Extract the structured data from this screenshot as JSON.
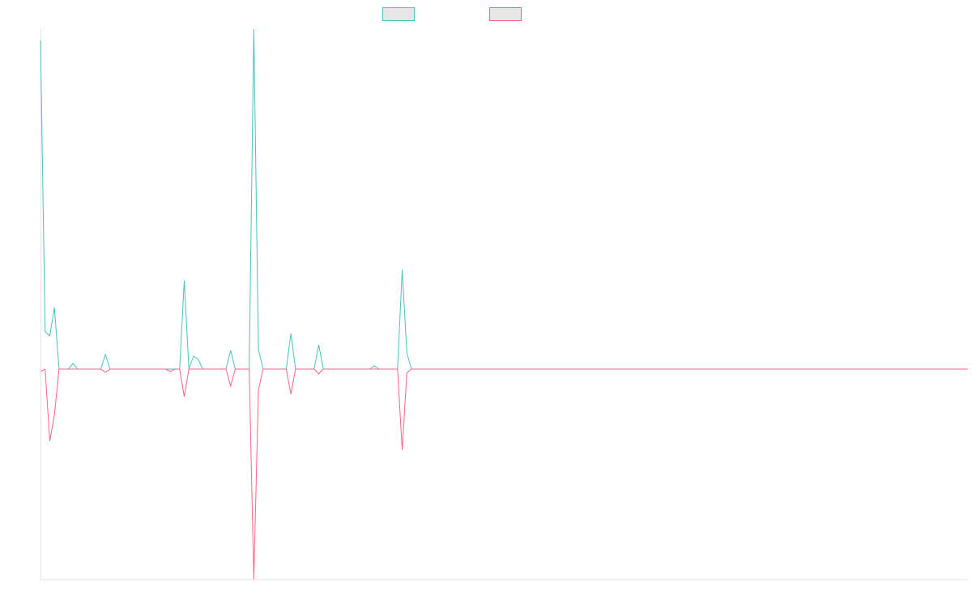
{
  "chart_data": {
    "type": "line",
    "series": [
      {
        "color": "#4bc0c0",
        "values": [
          406,
          46,
          41,
          76,
          0,
          0,
          0,
          7,
          0,
          0,
          0,
          0,
          0,
          0,
          18,
          0,
          0,
          0,
          0,
          0,
          0,
          0,
          0,
          0,
          0,
          0,
          0,
          0,
          0,
          0,
          0,
          109,
          0,
          16,
          12,
          0,
          0,
          0,
          0,
          0,
          0,
          23,
          0,
          0,
          0,
          0,
          420,
          24,
          0,
          0,
          0,
          0,
          0,
          0,
          44,
          0,
          0,
          0,
          0,
          0,
          30,
          0,
          0,
          0,
          0,
          0,
          0,
          0,
          0,
          0,
          0,
          0,
          4,
          0,
          0,
          0,
          0,
          0,
          123,
          20,
          0,
          0,
          0,
          0,
          0,
          0,
          0,
          0,
          0,
          0,
          0,
          0,
          0,
          0,
          0,
          0,
          0,
          0,
          0,
          0,
          0,
          0,
          0,
          0,
          0,
          0,
          0,
          0,
          0,
          0,
          0,
          0,
          0,
          0,
          0,
          0,
          0,
          0,
          0,
          0,
          0,
          0,
          0,
          0,
          0,
          0,
          0,
          0,
          0,
          0,
          0,
          0,
          0,
          0,
          0,
          0,
          0,
          0,
          0,
          0,
          0,
          0,
          0,
          0,
          0,
          0,
          0,
          0,
          0,
          0,
          0,
          0,
          0,
          0,
          0,
          0,
          0,
          0,
          0,
          0,
          0,
          0,
          0,
          0,
          0,
          0,
          0,
          0,
          0,
          0,
          0,
          0,
          0,
          0,
          0,
          0,
          0,
          0,
          0,
          0,
          0,
          0,
          0,
          0,
          0,
          0,
          0,
          0,
          0,
          0,
          0,
          0,
          0,
          0,
          0,
          0,
          0,
          0,
          0,
          0,
          0
        ]
      },
      {
        "color": "#ff6384",
        "values": [
          -3,
          0,
          -89,
          -57,
          0,
          0,
          0,
          0,
          0,
          0,
          0,
          0,
          0,
          0,
          -4,
          0,
          0,
          0,
          0,
          0,
          0,
          0,
          0,
          0,
          0,
          0,
          0,
          0,
          -3,
          0,
          0,
          -34,
          0,
          0,
          0,
          0,
          0,
          0,
          0,
          0,
          0,
          -21,
          0,
          0,
          0,
          0,
          -260,
          -26,
          0,
          0,
          0,
          0,
          0,
          0,
          -31,
          0,
          0,
          0,
          0,
          0,
          -6,
          0,
          0,
          0,
          0,
          0,
          0,
          0,
          0,
          0,
          0,
          0,
          0,
          0,
          0,
          0,
          0,
          0,
          -100,
          -5,
          0,
          0,
          0,
          0,
          0,
          0,
          0,
          0,
          0,
          0,
          0,
          0,
          0,
          0,
          0,
          0,
          0,
          0,
          0,
          0,
          0,
          0,
          0,
          0,
          0,
          0,
          0,
          0,
          0,
          0,
          0,
          0,
          0,
          0,
          0,
          0,
          0,
          0,
          0,
          0,
          0,
          0,
          0,
          0,
          0,
          0,
          0,
          0,
          0,
          0,
          0,
          0,
          0,
          0,
          0,
          0,
          0,
          0,
          0,
          0,
          0,
          0,
          0,
          0,
          0,
          0,
          0,
          0,
          0,
          0,
          0,
          0,
          0,
          0,
          0,
          0,
          0,
          0,
          0,
          0,
          0,
          0,
          0,
          0,
          0,
          0,
          0,
          0,
          0,
          0,
          0,
          0,
          0,
          0,
          0,
          0,
          0,
          0,
          0,
          0,
          0,
          0,
          0,
          0,
          0,
          0,
          0,
          0,
          0,
          0,
          0,
          0,
          0,
          0,
          0,
          0,
          0,
          0,
          0,
          0,
          0
        ]
      }
    ],
    "ylim": [
      -260,
      420
    ]
  }
}
